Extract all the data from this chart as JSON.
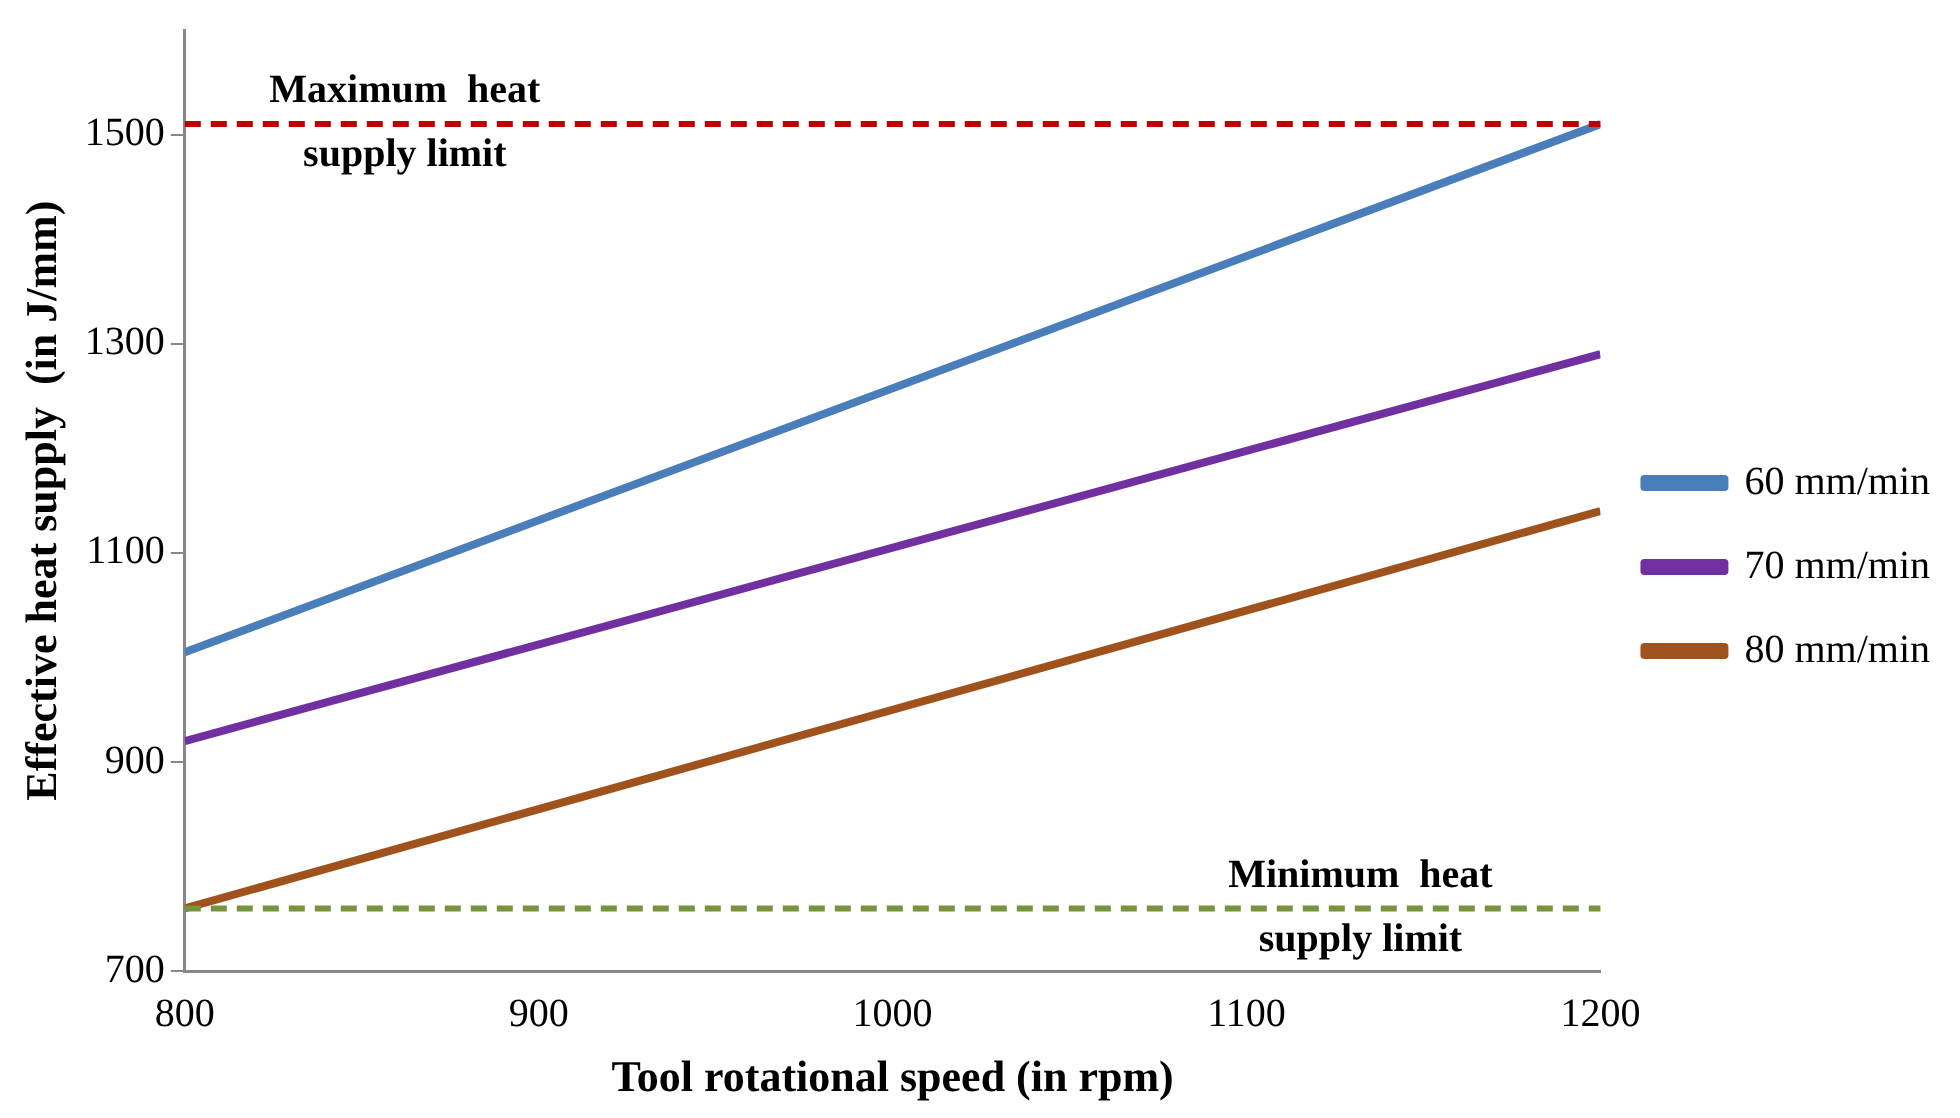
{
  "chart_data": {
    "type": "line",
    "xlabel": "Tool rotational speed (in rpm)",
    "ylabel": "Effective heat supply  (in J/mm)",
    "x": [
      800,
      1200
    ],
    "series": [
      {
        "name": "60 mm/min",
        "color": "#4a7ebb",
        "values": [
          1005,
          1510
        ]
      },
      {
        "name": "70 mm/min",
        "color": "#7030a0",
        "values": [
          920,
          1290
        ]
      },
      {
        "name": "80 mm/min",
        "color": "#a0521d",
        "values": [
          760,
          1140
        ]
      }
    ],
    "xlim": [
      800,
      1200
    ],
    "xticks": [
      800,
      900,
      1000,
      1100,
      1200
    ],
    "ylim": [
      700,
      1600
    ],
    "yticks": [
      700,
      900,
      1100,
      1300,
      1500
    ],
    "ref_lines": [
      {
        "axis": "y",
        "value": 1510,
        "label": "Maximum heat supply limit",
        "color": "#c00000",
        "line_style": "dashed"
      },
      {
        "axis": "y",
        "value": 760,
        "label": "Minimum  heat supply limit",
        "color": "#77933c",
        "line_style": "dashed"
      }
    ],
    "grid": false,
    "legend": "right",
    "marker": "none",
    "line_style": "solid"
  }
}
